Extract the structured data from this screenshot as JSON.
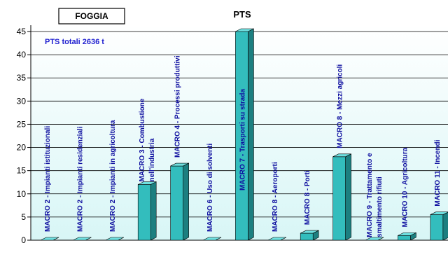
{
  "chart_data": {
    "type": "bar",
    "title": "PTS",
    "box_label": "FOGGIA",
    "note": "PTS totali 2636  t",
    "xlabel": "",
    "ylabel": "",
    "ylim": [
      0,
      45
    ],
    "yticks": [
      "0",
      "5",
      "10",
      "15",
      "20",
      "25",
      "30",
      "35",
      "40",
      "45"
    ],
    "grid": true,
    "categories": [
      "MACRO 2 - Impianti istituzionali",
      "MACRO 2 - Impianti residenziali",
      "MACRO 2 - Impianti in agricoltura",
      "MACRO 3 - Combustione nell'industria",
      "MACRO 4 - Processi produttivi",
      "MACRO 6 - Uso di solventi",
      "MACRO 7 - Trasporti su strada",
      "MACRO 8 - Aeroporti",
      "MACRO 8 - Porti",
      "MACRO 8 - Mezzi agricoli",
      "MACRO 9 - Trattamento e smaltimento rifiuti",
      "MACRO 10 - Agricoltura",
      "MACRO 11 - Incendi"
    ],
    "values": [
      0,
      0,
      0,
      12,
      16,
      0,
      45,
      0,
      1.5,
      18,
      0,
      1,
      5.5
    ],
    "colors": {
      "bar_front": "#33bdbd",
      "bar_side": "#1c7f80",
      "bar_top": "#6fe0e0",
      "plot_bg": "#e8fbfb",
      "label": "#1010a0",
      "note": "#1f1fd0"
    }
  }
}
